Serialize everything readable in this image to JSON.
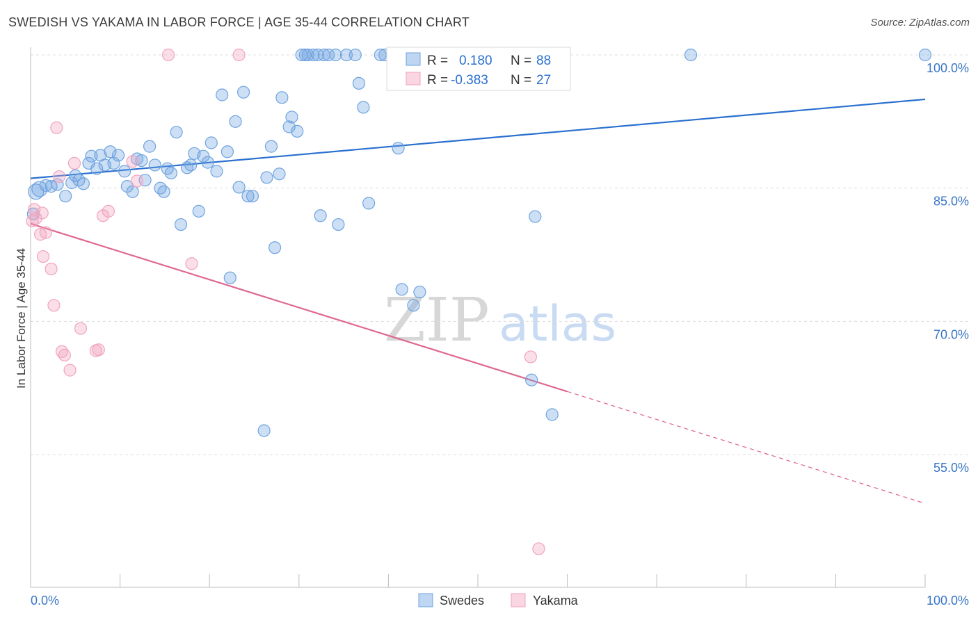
{
  "title": "SWEDISH VS YAKAMA IN LABOR FORCE | AGE 35-44 CORRELATION CHART",
  "source": "Source: ZipAtlas.com",
  "watermark": {
    "zip": "ZIP",
    "atlas": "atlas"
  },
  "colors": {
    "swedes": "#6fa3e0",
    "yakama": "#f2a3bd",
    "swedes_line": "#2a70cf",
    "yakama_line": "#e06890",
    "tick_label": "#3a76c5"
  },
  "legend": {
    "rows": [
      {
        "r_label": "R =",
        "r_value": "0.180",
        "n_label": "N =",
        "n_value": "88"
      },
      {
        "r_label": "R =",
        "r_value": "-0.383",
        "n_label": "N =",
        "n_value": "27"
      }
    ]
  },
  "chart_data": {
    "type": "scatter",
    "title": "SWEDISH VS YAKAMA IN LABOR FORCE | AGE 35-44 CORRELATION CHART",
    "xlabel": "",
    "ylabel": "In Labor Force | Age 35-44",
    "xlim": [
      0,
      100
    ],
    "ylim": [
      40,
      103
    ],
    "x_tick_labels": [
      "0.0%",
      "100.0%"
    ],
    "y_ticks": [
      {
        "value": 55,
        "label": "55.0%"
      },
      {
        "value": 70,
        "label": "70.0%"
      },
      {
        "value": 85,
        "label": "85.0%"
      },
      {
        "value": 100,
        "label": "100.0%"
      }
    ],
    "grid": "horizontal dashed",
    "legend_position": "top-center",
    "series": [
      {
        "name": "Swedes",
        "points": [
          [
            0.6,
            84.6
          ],
          [
            1.0,
            84.9
          ],
          [
            1.7,
            85.3
          ],
          [
            2.3,
            85.2
          ],
          [
            3.0,
            85.4
          ],
          [
            3.9,
            84.1
          ],
          [
            4.6,
            85.6
          ],
          [
            5.0,
            86.4
          ],
          [
            5.4,
            85.9
          ],
          [
            5.9,
            85.5
          ],
          [
            6.5,
            87.8
          ],
          [
            6.8,
            88.6
          ],
          [
            7.4,
            87.2
          ],
          [
            7.8,
            88.7
          ],
          [
            8.3,
            87.6
          ],
          [
            8.9,
            89.1
          ],
          [
            9.3,
            87.8
          ],
          [
            9.8,
            88.7
          ],
          [
            10.5,
            86.9
          ],
          [
            10.8,
            85.2
          ],
          [
            11.4,
            84.6
          ],
          [
            11.9,
            88.3
          ],
          [
            12.4,
            88.1
          ],
          [
            12.8,
            85.9
          ],
          [
            13.3,
            89.7
          ],
          [
            13.9,
            87.6
          ],
          [
            14.5,
            85.0
          ],
          [
            14.9,
            84.6
          ],
          [
            15.3,
            87.2
          ],
          [
            15.7,
            86.7
          ],
          [
            16.3,
            91.3
          ],
          [
            16.8,
            80.9
          ],
          [
            17.5,
            87.3
          ],
          [
            17.9,
            87.6
          ],
          [
            18.3,
            88.9
          ],
          [
            18.8,
            82.4
          ],
          [
            19.3,
            88.6
          ],
          [
            19.8,
            87.9
          ],
          [
            20.2,
            90.1
          ],
          [
            20.8,
            86.9
          ],
          [
            21.4,
            95.5
          ],
          [
            22.0,
            89.1
          ],
          [
            22.3,
            74.9
          ],
          [
            22.9,
            92.5
          ],
          [
            23.3,
            85.1
          ],
          [
            23.8,
            95.8
          ],
          [
            24.3,
            84.1
          ],
          [
            24.8,
            84.1
          ],
          [
            26.1,
            57.7
          ],
          [
            26.4,
            86.2
          ],
          [
            26.9,
            89.7
          ],
          [
            27.3,
            78.3
          ],
          [
            27.8,
            86.6
          ],
          [
            28.1,
            95.2
          ],
          [
            28.9,
            91.9
          ],
          [
            29.2,
            93.0
          ],
          [
            29.8,
            91.4
          ],
          [
            30.3,
            100.0
          ],
          [
            30.7,
            100.0
          ],
          [
            31.0,
            100.0
          ],
          [
            31.6,
            100.0
          ],
          [
            32.1,
            100.0
          ],
          [
            32.4,
            81.9
          ],
          [
            32.8,
            100.0
          ],
          [
            33.3,
            100.0
          ],
          [
            34.1,
            100.0
          ],
          [
            34.4,
            80.9
          ],
          [
            35.3,
            100.0
          ],
          [
            36.3,
            100.0
          ],
          [
            36.7,
            96.8
          ],
          [
            37.2,
            94.1
          ],
          [
            37.8,
            83.3
          ],
          [
            39.1,
            100.0
          ],
          [
            39.6,
            100.0
          ],
          [
            41.1,
            89.5
          ],
          [
            41.5,
            73.6
          ],
          [
            42.3,
            100.0
          ],
          [
            42.8,
            71.8
          ],
          [
            43.5,
            73.3
          ],
          [
            44.6,
            100.0
          ],
          [
            45.1,
            100.0
          ],
          [
            46.5,
            100.0
          ],
          [
            56.0,
            63.4
          ],
          [
            56.4,
            81.8
          ],
          [
            58.3,
            59.5
          ],
          [
            73.8,
            100.0
          ],
          [
            100.0,
            100.0
          ],
          [
            0.3,
            82.1
          ]
        ],
        "trend": {
          "x": [
            0,
            100
          ],
          "y": [
            86.1,
            95.0
          ]
        }
      },
      {
        "name": "Yakama",
        "points": [
          [
            0.2,
            81.3
          ],
          [
            0.4,
            82.6
          ],
          [
            0.6,
            81.6
          ],
          [
            1.1,
            79.8
          ],
          [
            1.3,
            82.2
          ],
          [
            1.4,
            77.3
          ],
          [
            1.7,
            80.0
          ],
          [
            2.3,
            75.9
          ],
          [
            2.6,
            71.8
          ],
          [
            2.9,
            91.8
          ],
          [
            3.2,
            86.3
          ],
          [
            3.5,
            66.6
          ],
          [
            3.8,
            66.2
          ],
          [
            4.4,
            64.5
          ],
          [
            4.9,
            87.8
          ],
          [
            5.6,
            69.2
          ],
          [
            7.3,
            66.7
          ],
          [
            7.6,
            66.8
          ],
          [
            8.1,
            81.9
          ],
          [
            8.7,
            82.4
          ],
          [
            11.4,
            88.0
          ],
          [
            11.9,
            85.8
          ],
          [
            15.4,
            100.0
          ],
          [
            18.0,
            76.5
          ],
          [
            23.3,
            100.0
          ],
          [
            55.9,
            66.0
          ],
          [
            56.8,
            44.4
          ]
        ],
        "trend": {
          "x": [
            0,
            60
          ],
          "y": [
            81.0,
            62.1
          ]
        },
        "trend_projection": {
          "x": [
            60,
            100
          ],
          "y": [
            62.1,
            49.5
          ]
        }
      }
    ]
  },
  "bottom_legend": [
    "Swedes",
    "Yakama"
  ]
}
